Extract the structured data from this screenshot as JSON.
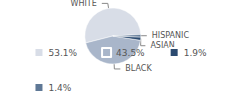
{
  "chart_data": {
    "type": "pie",
    "categories": [
      "WHITE",
      "BLACK",
      "ASIAN",
      "HISPANIC"
    ],
    "values": [
      53.1,
      43.5,
      1.9,
      1.4
    ],
    "value_labels": [
      "53.1%",
      "43.5%",
      "1.9%",
      "1.4%"
    ],
    "colors": [
      "#d8dde7",
      "#a9b6ca",
      "#2b4a70",
      "#5f7896"
    ],
    "legend": "bottom"
  }
}
